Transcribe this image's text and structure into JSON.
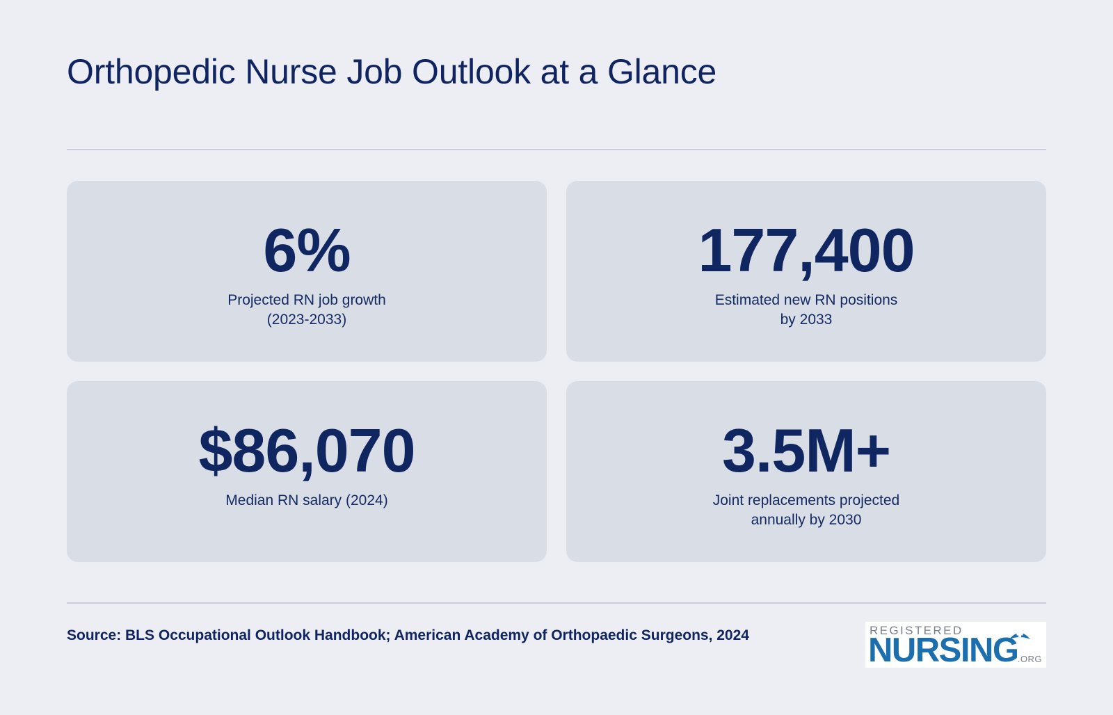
{
  "header": {
    "title": "Orthopedic Nurse Job Outlook at a Glance"
  },
  "stats": [
    {
      "value": "6%",
      "label_lines": [
        "Projected RN job growth",
        "(2023-2033)"
      ]
    },
    {
      "value": "177,400",
      "label_lines": [
        "Estimated new RN positions",
        "by 2033"
      ]
    },
    {
      "value": "$86,070",
      "label_lines": [
        "Median RN salary (2024)"
      ]
    },
    {
      "value": "3.5M+",
      "label_lines": [
        "Joint replacements projected",
        "annually by 2030"
      ]
    }
  ],
  "footer": {
    "source": "Source: BLS Occupational Outlook Handbook; American Academy of Orthopaedic Surgeons, 2024",
    "logo": {
      "top_text": "REGISTERED",
      "main_text": "NURSING",
      "suffix": ".ORG",
      "icon": "nurse-cap-icon"
    }
  },
  "colors": {
    "background": "#eceef3",
    "card": "#d9dde6",
    "text": "#0f2660",
    "logo_blue": "#1b6fae"
  }
}
